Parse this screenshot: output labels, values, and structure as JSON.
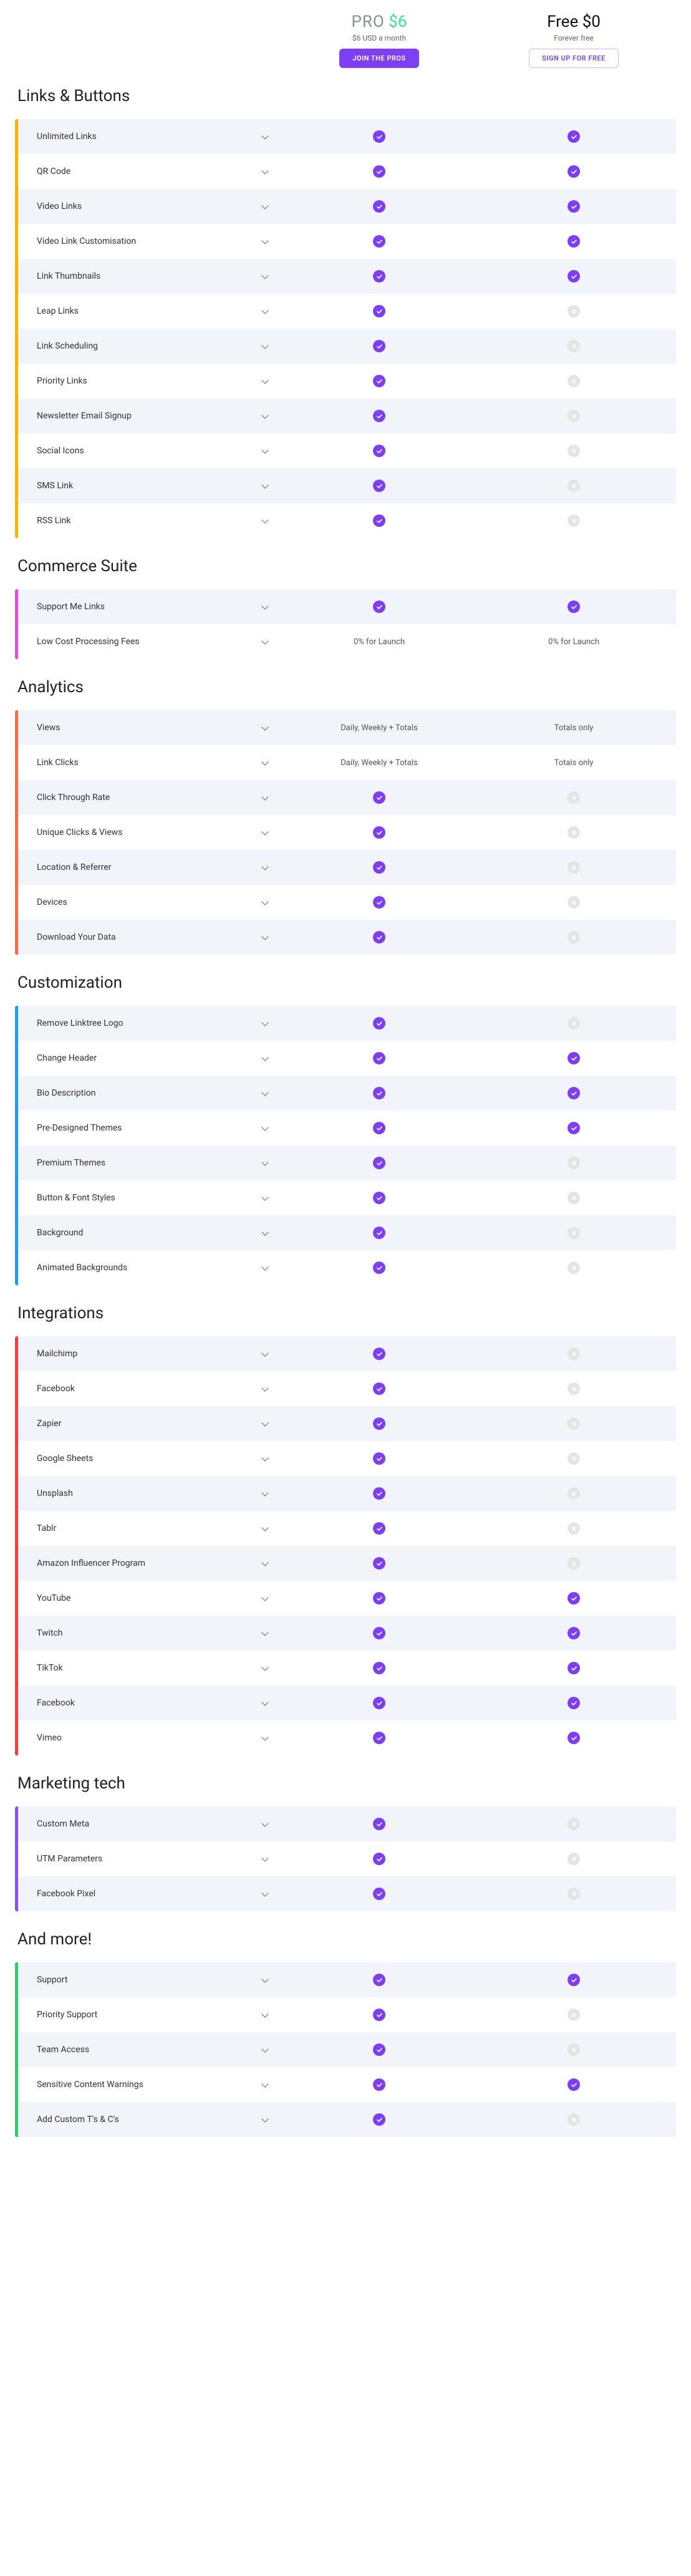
{
  "plans": {
    "pro": {
      "title_label": "PRO",
      "title_price": "$6",
      "sub": "$6 USD a month",
      "cta": "JOIN THE PROS"
    },
    "free": {
      "title": "Free $0",
      "sub": "Forever free",
      "cta": "SIGN UP FOR FREE"
    }
  },
  "colors": {
    "accent": "#7e3ff2",
    "check_off": "#e5e5e5",
    "row_alt": "#f3f3fb"
  },
  "sections": [
    {
      "title": "Links & Buttons",
      "border_color": "#ffb300",
      "rows": [
        {
          "label": "Unlimited Links",
          "pro": "check",
          "free": "check"
        },
        {
          "label": "QR Code",
          "pro": "check",
          "free": "check"
        },
        {
          "label": "Video Links",
          "pro": "check",
          "free": "check"
        },
        {
          "label": "Video Link Customisation",
          "pro": "check",
          "free": "check"
        },
        {
          "label": "Link Thumbnails",
          "pro": "check",
          "free": "check"
        },
        {
          "label": "Leap Links",
          "pro": "check",
          "free": "x"
        },
        {
          "label": "Link Scheduling",
          "pro": "check",
          "free": "x"
        },
        {
          "label": "Priority Links",
          "pro": "check",
          "free": "x"
        },
        {
          "label": "Newsletter Email Signup",
          "pro": "check",
          "free": "x"
        },
        {
          "label": "Social Icons",
          "pro": "check",
          "free": "x"
        },
        {
          "label": "SMS Link",
          "pro": "check",
          "free": "x"
        },
        {
          "label": "RSS Link",
          "pro": "check",
          "free": "x"
        }
      ]
    },
    {
      "title": "Commerce Suite",
      "border_color": "#e64ad9",
      "rows": [
        {
          "label": "Support Me Links",
          "pro": "check",
          "free": "check"
        },
        {
          "label": "Low Cost Processing Fees",
          "pro_text": "0% for Launch",
          "free_text": "0% for Launch"
        }
      ]
    },
    {
      "title": "Analytics",
      "border_color": "#ff6b4a",
      "rows": [
        {
          "label": "Views",
          "pro_text": "Daily, Weekly + Totals",
          "free_text": "Totals only"
        },
        {
          "label": "Link Clicks",
          "pro_text": "Daily, Weekly + Totals",
          "free_text": "Totals only"
        },
        {
          "label": "Click Through Rate",
          "pro": "check",
          "free": "x"
        },
        {
          "label": "Unique Clicks & Views",
          "pro": "check",
          "free": "x"
        },
        {
          "label": "Location & Referrer",
          "pro": "check",
          "free": "x"
        },
        {
          "label": "Devices",
          "pro": "check",
          "free": "x"
        },
        {
          "label": "Download Your Data",
          "pro": "check",
          "free": "x"
        }
      ]
    },
    {
      "title": "Customization",
      "border_color": "#1e9bff",
      "rows": [
        {
          "label": "Remove Linktree Logo",
          "pro": "check",
          "free": "x"
        },
        {
          "label": "Change Header",
          "pro": "check",
          "free": "check"
        },
        {
          "label": "Bio Description",
          "pro": "check",
          "free": "check"
        },
        {
          "label": "Pre-Designed Themes",
          "pro": "check",
          "free": "check"
        },
        {
          "label": "Premium Themes",
          "pro": "check",
          "free": "x"
        },
        {
          "label": "Button & Font Styles",
          "pro": "check",
          "free": "x"
        },
        {
          "label": "Background",
          "pro": "check",
          "free": "x"
        },
        {
          "label": "Animated Backgrounds",
          "pro": "check",
          "free": "x"
        }
      ]
    },
    {
      "title": "Integrations",
      "border_color": "#ff3b3b",
      "rows": [
        {
          "label": "Mailchimp",
          "pro": "check",
          "free": "x"
        },
        {
          "label": "Facebook",
          "pro": "check",
          "free": "x"
        },
        {
          "label": "Zapier",
          "pro": "check",
          "free": "x"
        },
        {
          "label": "Google Sheets",
          "pro": "check",
          "free": "x"
        },
        {
          "label": "Unsplash",
          "pro": "check",
          "free": "x"
        },
        {
          "label": "Tablr",
          "pro": "check",
          "free": "x"
        },
        {
          "label": "Amazon Influencer Program",
          "pro": "check",
          "free": "x"
        },
        {
          "label": "YouTube",
          "pro": "check",
          "free": "check"
        },
        {
          "label": "Twitch",
          "pro": "check",
          "free": "check"
        },
        {
          "label": "TikTok",
          "pro": "check",
          "free": "check"
        },
        {
          "label": "Facebook",
          "pro": "check",
          "free": "check"
        },
        {
          "label": "Vimeo",
          "pro": "check",
          "free": "check"
        }
      ]
    },
    {
      "title": "Marketing tech",
      "border_color": "#8b4cff",
      "rows": [
        {
          "label": "Custom Meta",
          "pro": "check",
          "free": "x"
        },
        {
          "label": "UTM Parameters",
          "pro": "check",
          "free": "x"
        },
        {
          "label": "Facebook Pixel",
          "pro": "check",
          "free": "x"
        }
      ]
    },
    {
      "title": "And more!",
      "border_color": "#2ecc71",
      "rows": [
        {
          "label": "Support",
          "pro": "check",
          "free": "check"
        },
        {
          "label": "Priority Support",
          "pro": "check",
          "free": "x"
        },
        {
          "label": "Team Access",
          "pro": "check",
          "free": "x"
        },
        {
          "label": "Sensitive Content Warnings",
          "pro": "check",
          "free": "check"
        },
        {
          "label": "Add Custom T's & C's",
          "pro": "check",
          "free": "x"
        }
      ]
    }
  ]
}
